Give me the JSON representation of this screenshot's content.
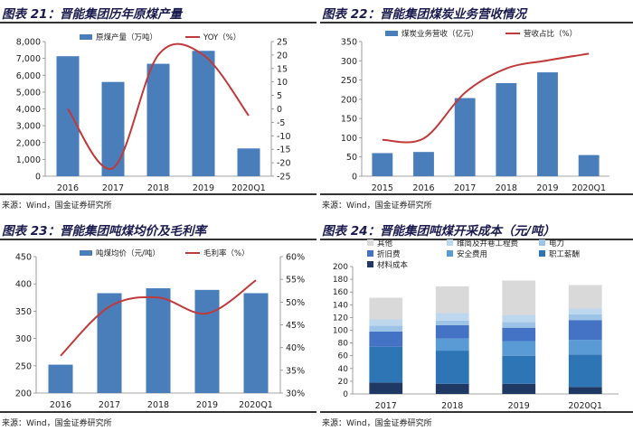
{
  "chart_data": [
    {
      "id": "c21",
      "type": "bar",
      "title": "图表 21：晋能集团历年原煤产量",
      "categories": [
        "2016",
        "2017",
        "2018",
        "2019",
        "2020Q1"
      ],
      "series": [
        {
          "name": "原煤产量（万吨）",
          "type": "bar",
          "axis": "left",
          "values": [
            7130,
            5600,
            6680,
            7450,
            1650
          ]
        },
        {
          "name": "YOY（%）",
          "type": "line",
          "axis": "right",
          "values": [
            0,
            -22,
            20,
            20,
            -2.5
          ]
        }
      ],
      "y_left": {
        "min": 0,
        "max": 8000,
        "step": 1000,
        "ticks": [
          "0",
          "1,000",
          "2,000",
          "3,000",
          "4,000",
          "5,000",
          "6,000",
          "7,000",
          "8,000"
        ]
      },
      "y_right": {
        "min": -25,
        "max": 25,
        "step": 5,
        "ticks": [
          "-25",
          "-20",
          "-15",
          "-10",
          "-5",
          "0",
          "5",
          "10",
          "15",
          "20",
          "25"
        ]
      },
      "source": "来源：Wind，国金证券研究所"
    },
    {
      "id": "c22",
      "type": "bar",
      "title": "图表 22：晋能集团煤炭业务营收情况",
      "categories": [
        "2015",
        "2016",
        "2017",
        "2018",
        "2019",
        "2020Q1"
      ],
      "series": [
        {
          "name": "煤炭业务营收（亿元）",
          "type": "bar",
          "axis": "left",
          "values": [
            60,
            63,
            203,
            242,
            270,
            55
          ]
        },
        {
          "name": "营收占比（%）",
          "type": "line",
          "axis": "right",
          "values": [
            27,
            28,
            62,
            80,
            86,
            91
          ]
        }
      ],
      "y_left": {
        "min": 0,
        "max": 350,
        "step": 50,
        "ticks": [
          "0",
          "50",
          "100",
          "150",
          "200",
          "250",
          "300",
          "350"
        ]
      },
      "y_right": {
        "min": 0,
        "max": 100,
        "step": 0,
        "ticks": []
      },
      "source": "来源：Wind，国金证券研究所"
    },
    {
      "id": "c23",
      "type": "bar",
      "title": "图表 23：晋能集团吨煤均价及毛利率",
      "categories": [
        "2016",
        "2017",
        "2018",
        "2019",
        "2020Q1"
      ],
      "series": [
        {
          "name": "吨煤均价（元/吨）",
          "type": "bar",
          "axis": "left",
          "values": [
            252,
            383,
            392,
            389,
            383
          ]
        },
        {
          "name": "毛利率（%）",
          "type": "line",
          "axis": "right",
          "values": [
            38.2,
            49.0,
            51.0,
            47.5,
            54.8
          ]
        }
      ],
      "y_left": {
        "min": 200,
        "max": 450,
        "step": 50,
        "ticks": [
          "200",
          "250",
          "300",
          "350",
          "400",
          "450"
        ]
      },
      "y_right": {
        "min": 30,
        "max": 60,
        "step": 5,
        "ticks": [
          "30%",
          "35%",
          "40%",
          "45%",
          "50%",
          "55%",
          "60%"
        ]
      },
      "source": "来源：Wind，国金证券研究所"
    },
    {
      "id": "c24",
      "type": "bar",
      "stacked": true,
      "title": "图表 24：晋能集团吨煤开采成本（元/吨）",
      "categories": [
        "2017",
        "2018",
        "2019",
        "2020Q1"
      ],
      "series": [
        {
          "name": "材料成本",
          "color": "#1f3864",
          "values": [
            18,
            16,
            16,
            11
          ]
        },
        {
          "name": "职工薪酬",
          "color": "#2e75b6",
          "values": [
            56,
            52,
            44,
            51
          ]
        },
        {
          "name": "安全费用",
          "color": "#5b9bd5",
          "values": [
            0,
            19,
            23,
            23
          ]
        },
        {
          "name": "折旧费",
          "color": "#4472c4",
          "values": [
            24,
            21,
            21,
            31
          ]
        },
        {
          "name": "电力",
          "color": "#9dc3e6",
          "values": [
            9,
            7,
            9,
            9
          ]
        },
        {
          "name": "维简及井巷工程费",
          "color": "#bdd7ee",
          "values": [
            10,
            12,
            11,
            9
          ]
        },
        {
          "name": "其他",
          "color": "#d9d9d9",
          "values": [
            34,
            42,
            54,
            37
          ]
        }
      ],
      "legend_order": [
        "其他",
        "维简及井巷工程费",
        "电力",
        "折旧费",
        "安全费用",
        "职工薪酬",
        "材料成本"
      ],
      "y_left": {
        "min": 0,
        "max": 200,
        "step": 20,
        "ticks": [
          "0",
          "20",
          "40",
          "60",
          "80",
          "100",
          "120",
          "140",
          "160",
          "180",
          "200"
        ]
      },
      "source": "来源：Wind，国金证券研究所"
    }
  ]
}
